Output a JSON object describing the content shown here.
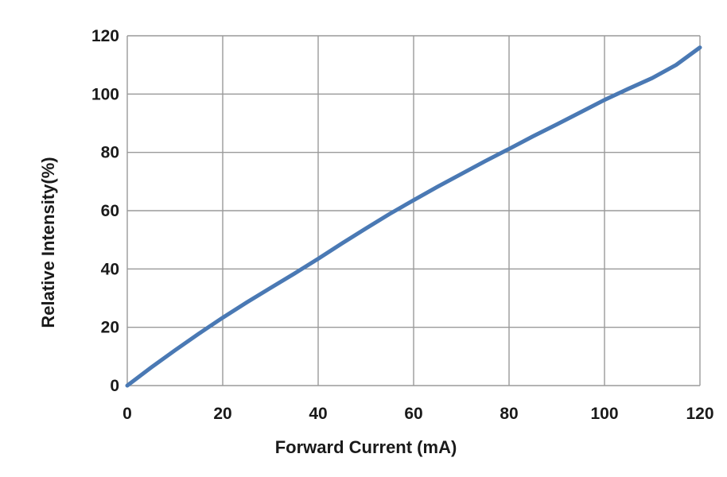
{
  "chart_data": {
    "type": "line",
    "title": "",
    "xlabel": "Forward Current (mA)",
    "ylabel": "Relative Intensity(%)",
    "xlim": [
      0,
      120
    ],
    "ylim": [
      0,
      120
    ],
    "x_ticks": [
      "0",
      "20",
      "40",
      "60",
      "80",
      "100",
      "120"
    ],
    "y_ticks": [
      "0",
      "20",
      "40",
      "60",
      "80",
      "100",
      "120"
    ],
    "grid": true,
    "legend": "none",
    "series": [
      {
        "x": [
          0,
          5,
          10,
          15,
          20,
          25,
          30,
          35,
          40,
          45,
          50,
          55,
          60,
          65,
          70,
          75,
          80,
          85,
          90,
          95,
          100,
          105,
          110,
          115,
          120
        ],
        "y": [
          0,
          6.2,
          12.1,
          17.8,
          23.3,
          28.5,
          33.5,
          38.4,
          43.5,
          48.8,
          53.9,
          58.9,
          63.6,
          68.2,
          72.6,
          77.0,
          81.2,
          85.5,
          89.6,
          93.8,
          98.0,
          101.8,
          105.5,
          110.0,
          116.0
        ],
        "color": "#4a79b4"
      }
    ]
  }
}
